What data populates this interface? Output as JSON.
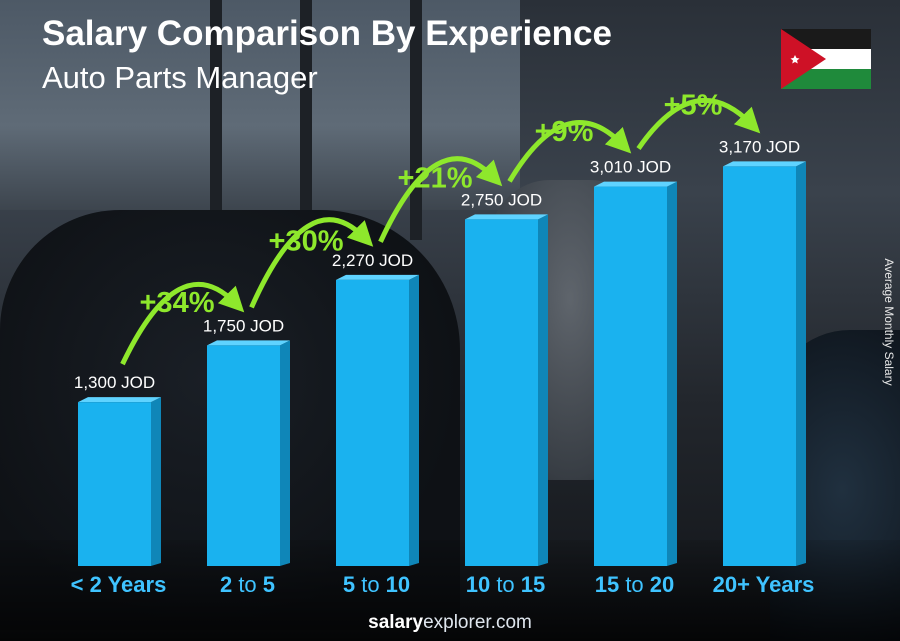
{
  "header": {
    "title": "Salary Comparison By Experience",
    "subtitle": "Auto Parts Manager"
  },
  "footer": {
    "brand_bold": "salary",
    "brand_light": "explorer.com"
  },
  "colors": {
    "bar": "#1ab2ef",
    "bar_side": "#0f86b8",
    "bar_top": "#5fd3ff",
    "growth": "#8ee82c",
    "tick": "#3fc3ff"
  },
  "chart_data": {
    "type": "bar",
    "title": "Salary Comparison By Experience",
    "subtitle": "Auto Parts Manager",
    "ylabel": "Average Monthly Salary",
    "xlabel": "",
    "currency": "JOD",
    "ylim": [
      0,
      3500
    ],
    "categories": [
      {
        "bold1": "< 2 Years",
        "light": "",
        "bold2": ""
      },
      {
        "bold1": "2",
        "light": " to ",
        "bold2": "5"
      },
      {
        "bold1": "5",
        "light": " to ",
        "bold2": "10"
      },
      {
        "bold1": "10",
        "light": " to ",
        "bold2": "15"
      },
      {
        "bold1": "15",
        "light": " to ",
        "bold2": "20"
      },
      {
        "bold1": "20+ Years",
        "light": "",
        "bold2": ""
      }
    ],
    "values": [
      1300,
      1750,
      2270,
      2750,
      3010,
      3170
    ],
    "value_labels": [
      "1,300 JOD",
      "1,750 JOD",
      "2,270 JOD",
      "2,750 JOD",
      "3,010 JOD",
      "3,170 JOD"
    ],
    "growth_labels": [
      "+34%",
      "+30%",
      "+21%",
      "+9%",
      "+5%"
    ],
    "grid": false,
    "legend": "none"
  }
}
